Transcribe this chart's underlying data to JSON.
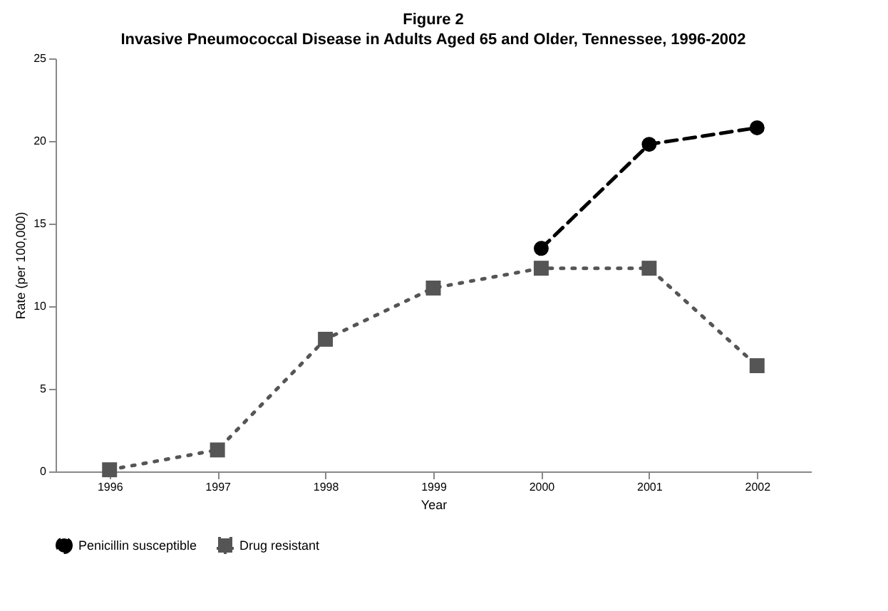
{
  "chart_data": {
    "type": "line",
    "title": "Figure 2",
    "subtitle": "Invasive Pneumococcal Disease in Adults Aged 65 and Older, Tennessee, 1996-2002",
    "xlabel": "Year",
    "ylabel": "Rate (per 100,000)",
    "categories": [
      "1996",
      "1997",
      "1998",
      "1999",
      "2000",
      "2001",
      "2002"
    ],
    "series": [
      {
        "name": "Penicillin susceptible",
        "color": "#000000",
        "marker": "circle",
        "line_style": "dashed",
        "values": [
          null,
          null,
          null,
          null,
          13.5,
          19.8,
          20.8
        ]
      },
      {
        "name": "Drug resistant",
        "color": "#555555",
        "marker": "square",
        "line_style": "dotted",
        "values": [
          0.1,
          1.3,
          8.0,
          11.1,
          12.3,
          12.3,
          6.4
        ]
      }
    ],
    "ylim": [
      0,
      25
    ],
    "yticks": [
      0,
      5,
      10,
      15,
      20,
      25
    ],
    "grid": false,
    "legend": "bottom"
  }
}
